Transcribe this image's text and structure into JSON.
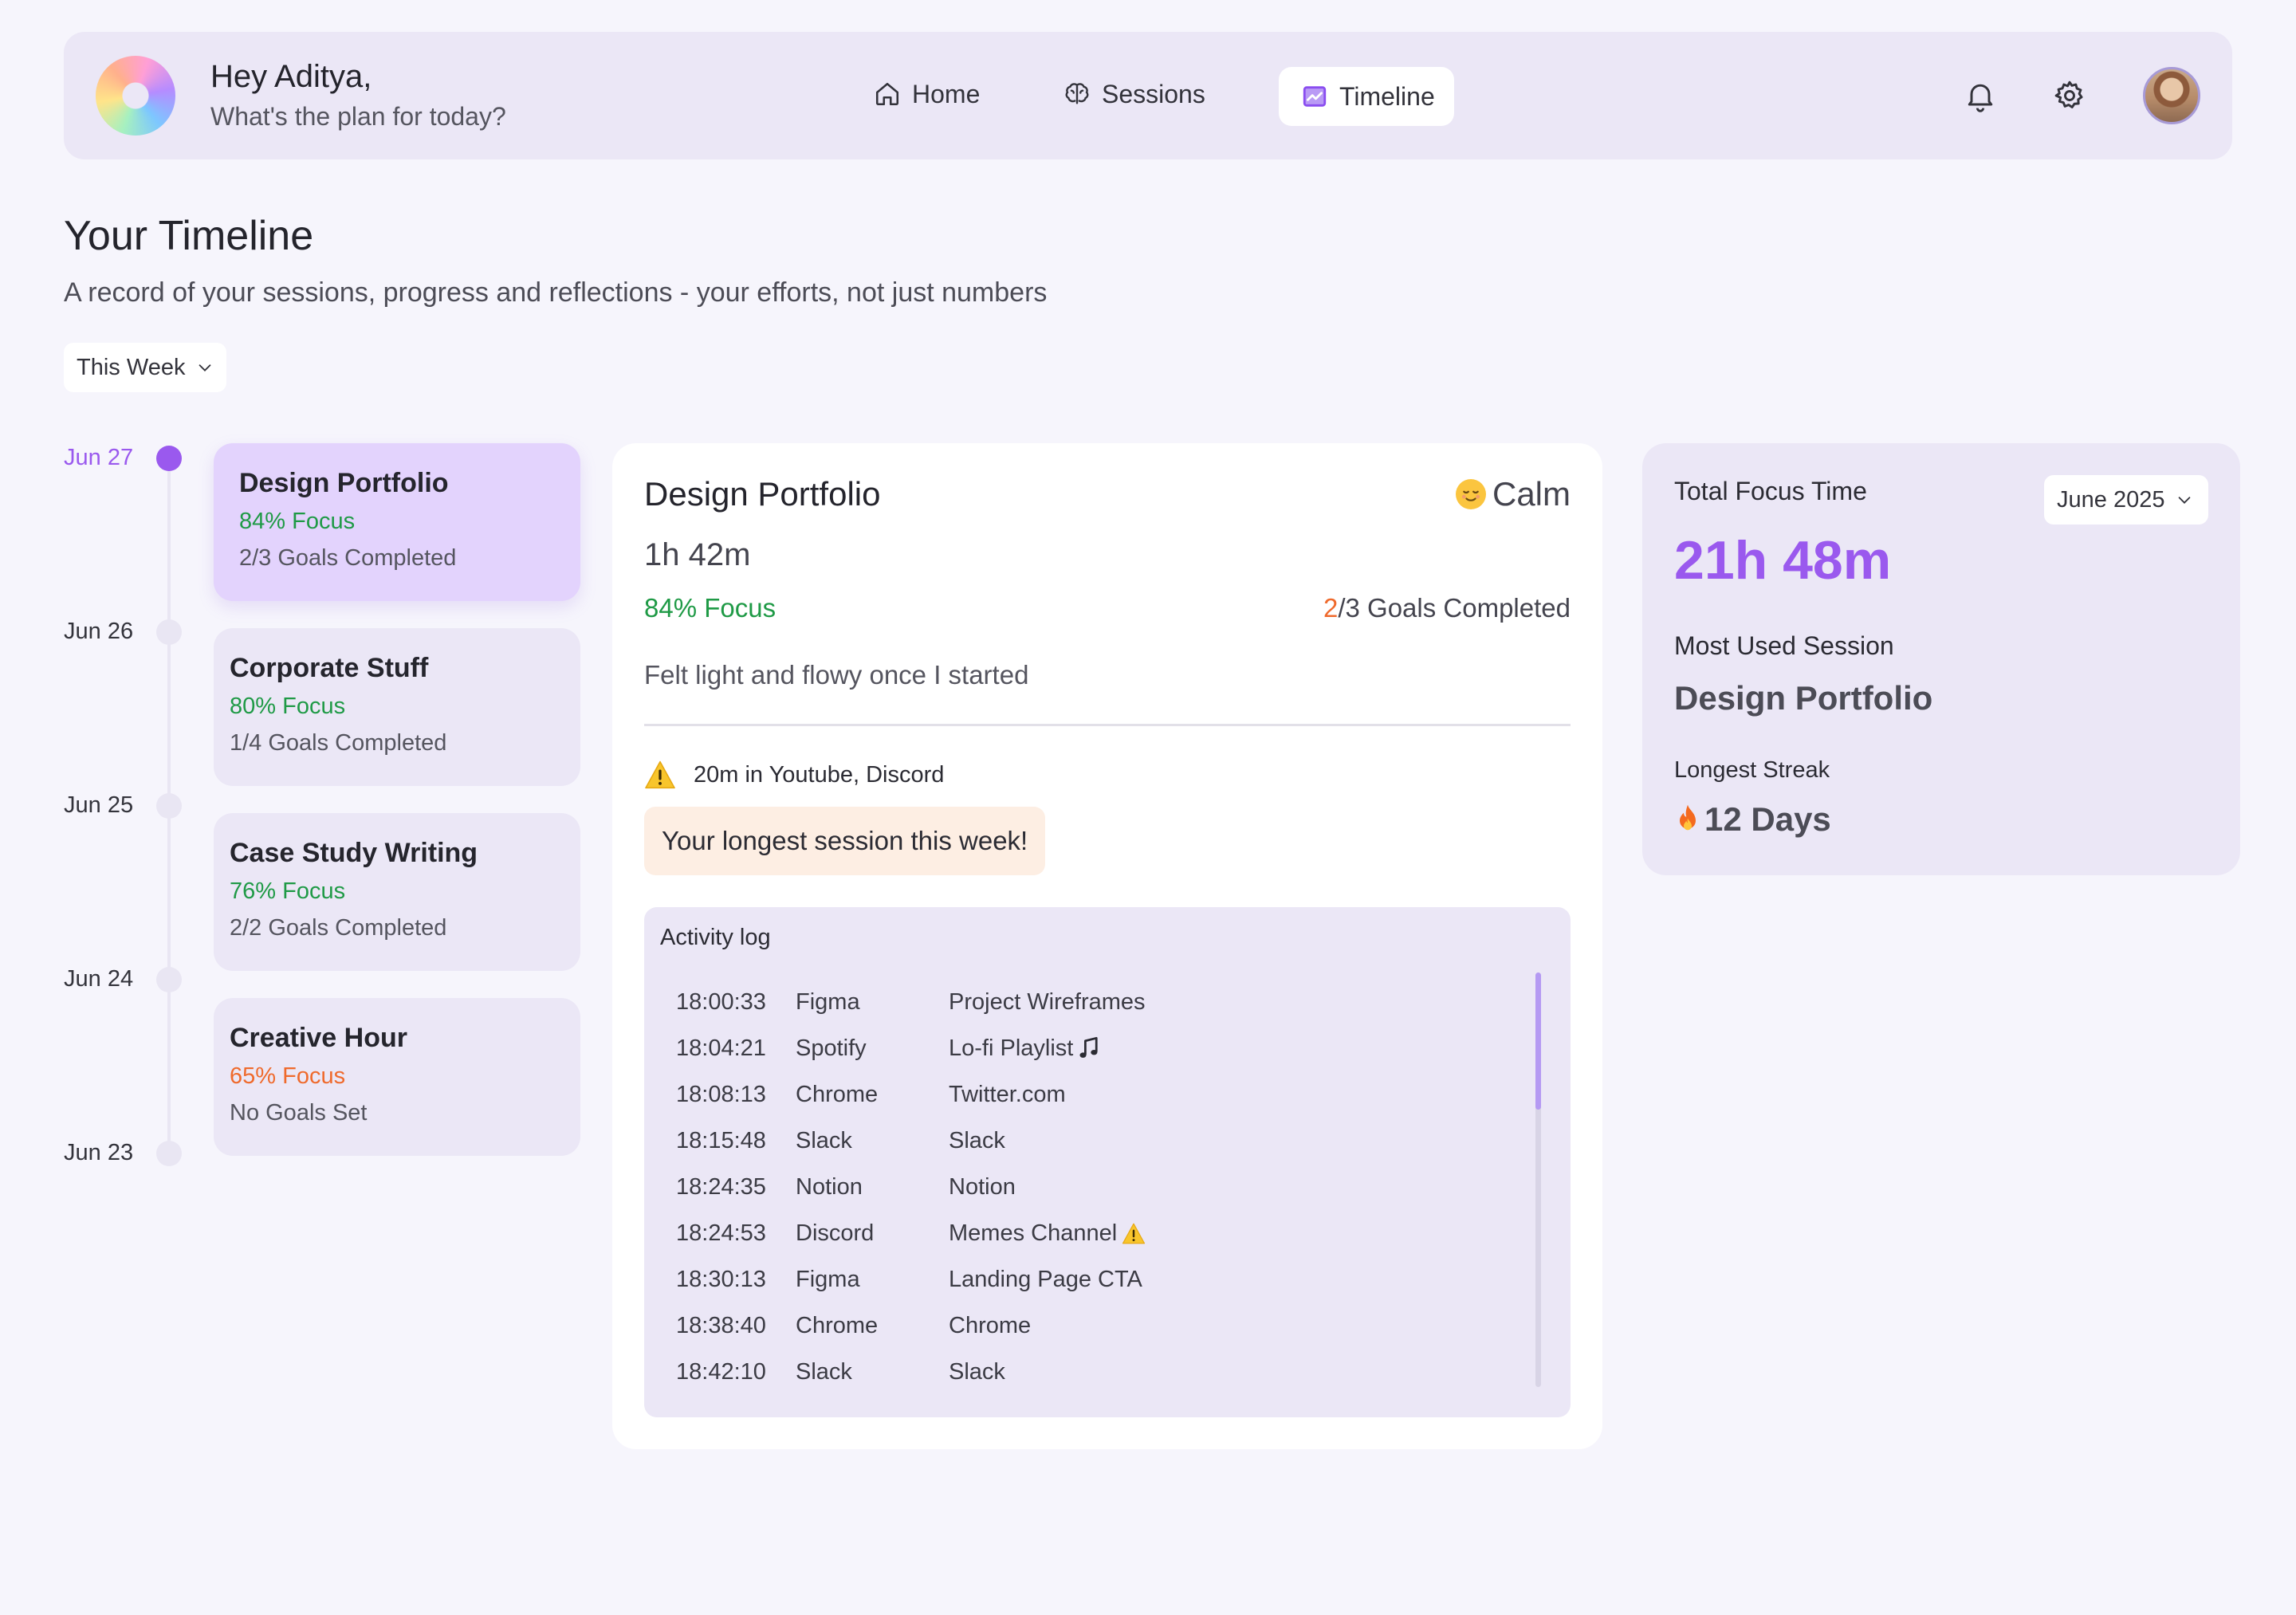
{
  "header": {
    "greeting": "Hey Aditya,",
    "subtitle": "What's the plan for today?",
    "nav": [
      {
        "label": "Home",
        "icon": "home-icon"
      },
      {
        "label": "Sessions",
        "icon": "brain-icon"
      },
      {
        "label": "Timeline",
        "icon": "chart-icon",
        "active": true
      }
    ]
  },
  "page": {
    "title": "Your Timeline",
    "subtitle": "A record of your sessions, progress and reflections - your efforts, not just numbers",
    "filter": "This Week"
  },
  "timeline": [
    {
      "date": "Jun 27",
      "title": "Design Portfolio",
      "focus": "84% Focus",
      "goals": "2/3 Goals Completed",
      "active": true
    },
    {
      "date": "Jun 26",
      "title": "Corporate Stuff",
      "focus": "80% Focus",
      "goals": "1/4 Goals Completed"
    },
    {
      "date": "Jun 25",
      "title": "Case Study Writing",
      "focus": "76% Focus",
      "goals": "2/2 Goals Completed"
    },
    {
      "date": "Jun 24",
      "title": "Creative Hour",
      "focus": "65% Focus",
      "goals": "No Goals Set"
    },
    {
      "date": "Jun 23"
    }
  ],
  "detail": {
    "title": "Design Portfolio",
    "mood": "Calm",
    "duration": "1h 42m",
    "focus": "84% Focus",
    "goals_done": "2",
    "goals_rest": "/3 Goals Completed",
    "note": "Felt light and flowy once I started",
    "distraction": "20m in Youtube, Discord",
    "badge": "Your longest session this week!",
    "log_title": "Activity log",
    "log": [
      {
        "time": "18:00:33",
        "app": "Figma",
        "what": "Project Wireframes"
      },
      {
        "time": "18:04:21",
        "app": "Spotify",
        "what": "Lo-fi Playlist",
        "icon": "music-note-icon"
      },
      {
        "time": "18:08:13",
        "app": "Chrome",
        "what": "Twitter.com"
      },
      {
        "time": "18:15:48",
        "app": "Slack",
        "what": "Slack"
      },
      {
        "time": "18:24:35",
        "app": "Notion",
        "what": "Notion"
      },
      {
        "time": "18:24:53",
        "app": "Discord",
        "what": "Memes Channel",
        "icon": "warning-icon"
      },
      {
        "time": "18:30:13",
        "app": "Figma",
        "what": "Landing Page CTA"
      },
      {
        "time": "18:38:40",
        "app": "Chrome",
        "what": "Chrome"
      },
      {
        "time": "18:42:10",
        "app": "Slack",
        "what": "Slack"
      }
    ]
  },
  "stats": {
    "total_label": "Total Focus Time",
    "month": "June 2025",
    "total": "21h 48m",
    "most_used_label": "Most Used Session",
    "most_used": "Design Portfolio",
    "streak_label": "Longest Streak",
    "streak": "12 Days"
  },
  "colors": {
    "accent": "#9a59ee",
    "focus_good": "#1f9a46",
    "focus_low": "#ef6a2c"
  }
}
